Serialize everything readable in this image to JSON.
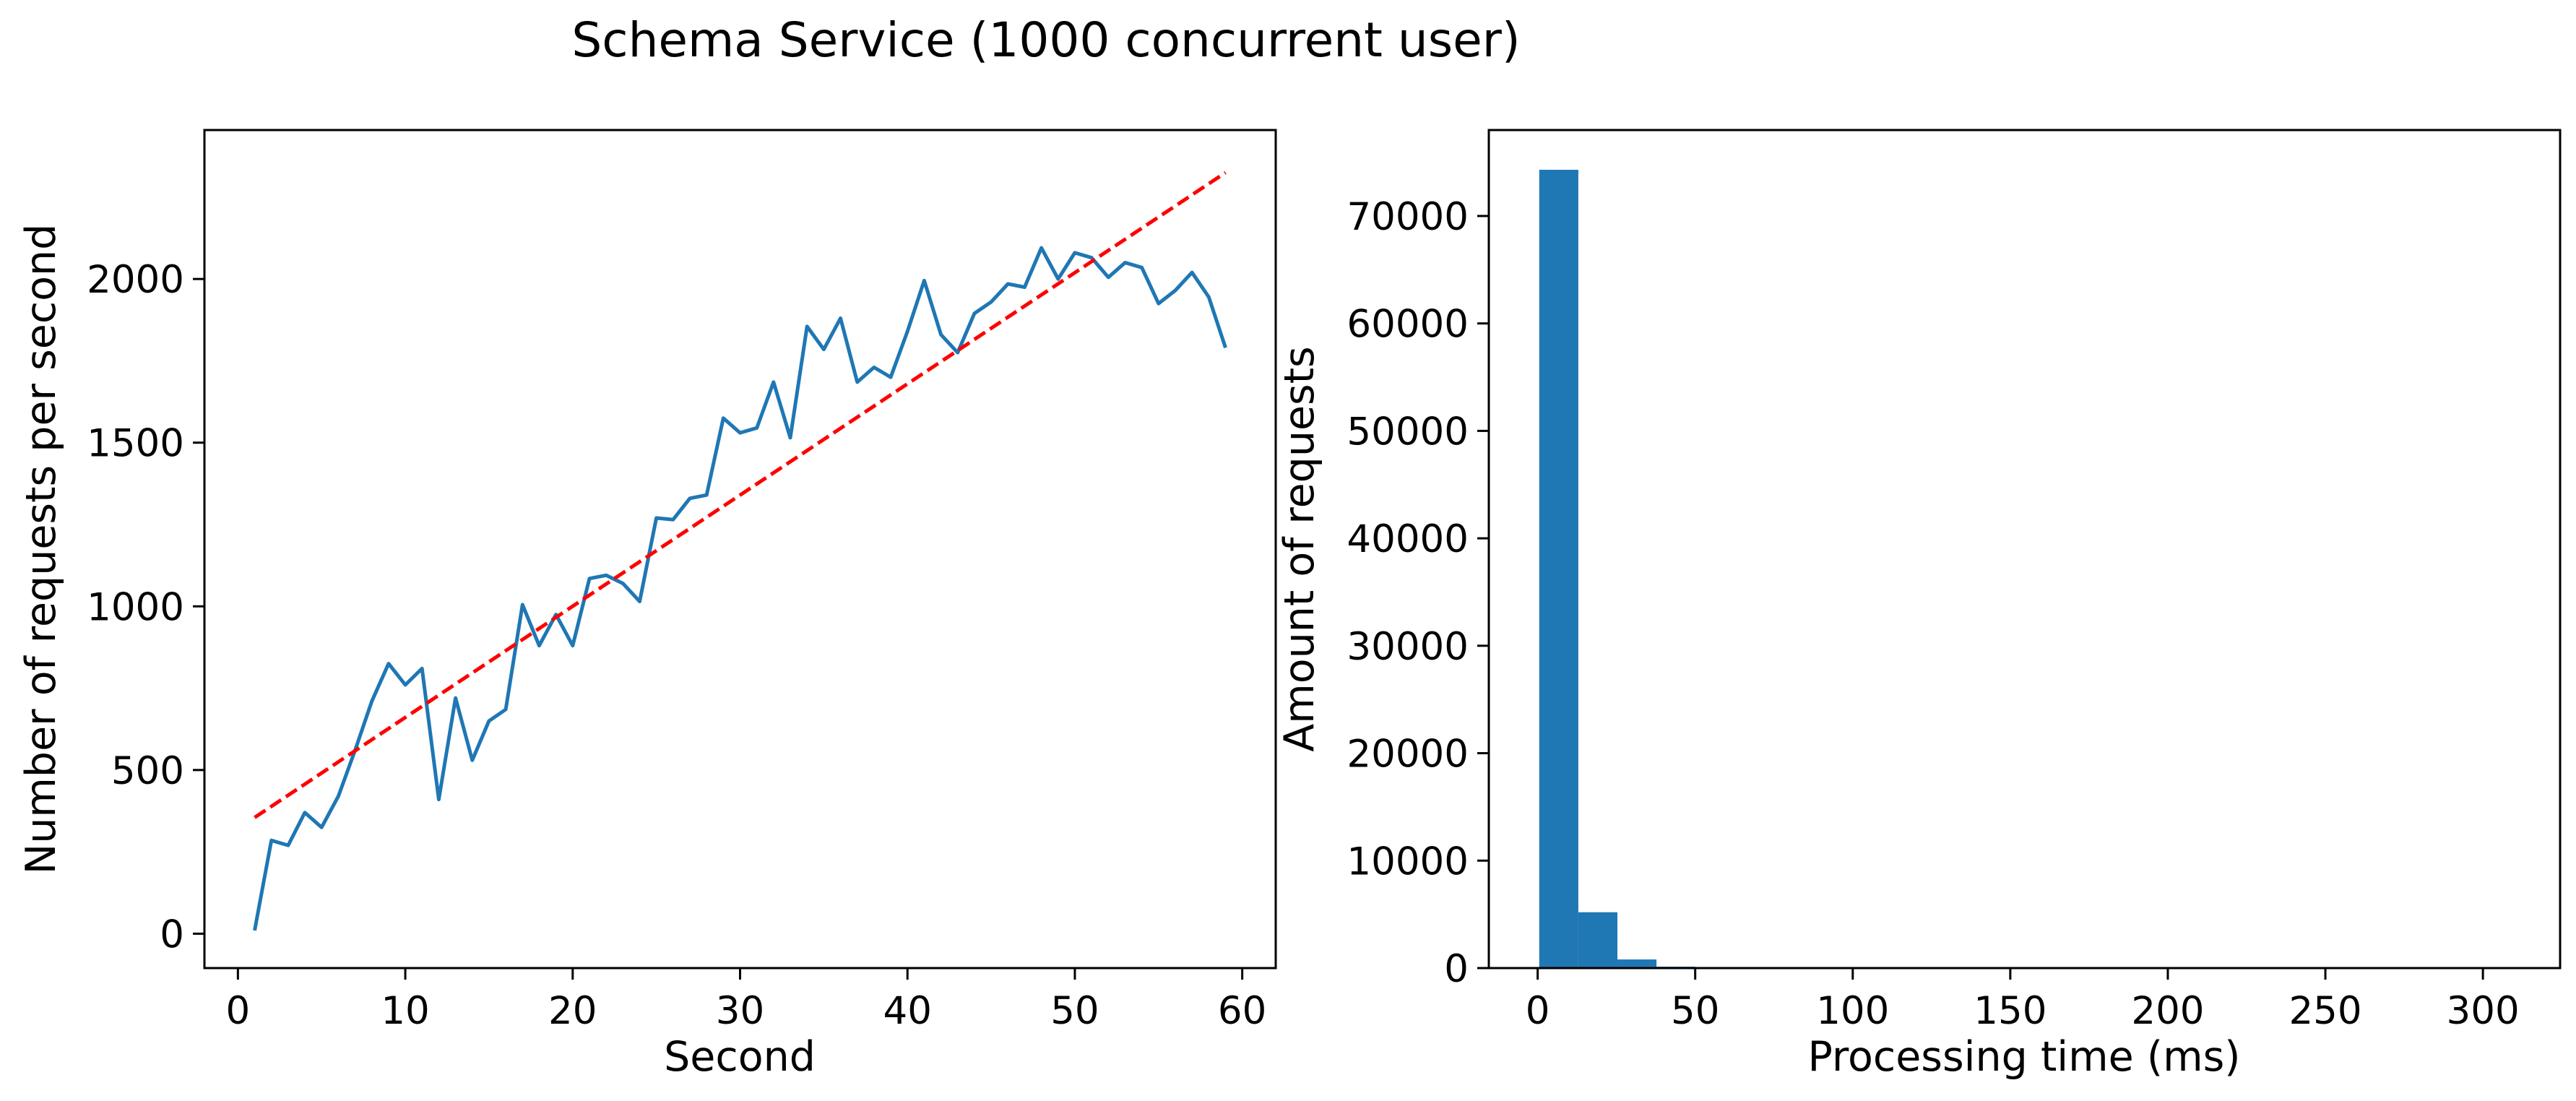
{
  "chart_data": [
    {
      "type": "line",
      "title": "Schema Service (1000 concurrent user)",
      "xlabel": "Second",
      "ylabel": "Number of requests per second",
      "xlim": [
        -2,
        62
      ],
      "ylim": [
        -105,
        2455
      ],
      "xticks": [
        0,
        10,
        20,
        30,
        40,
        50,
        60
      ],
      "yticks": [
        0,
        500,
        1000,
        1500,
        2000
      ],
      "grid": false,
      "series": [
        {
          "color": "#1f77b4",
          "style": "solid",
          "x": [
            1,
            2,
            3,
            4,
            5,
            6,
            7,
            8,
            9,
            10,
            11,
            12,
            13,
            14,
            15,
            16,
            17,
            18,
            19,
            20,
            21,
            22,
            23,
            24,
            25,
            26,
            27,
            28,
            29,
            30,
            31,
            32,
            33,
            34,
            35,
            36,
            37,
            38,
            39,
            40,
            41,
            42,
            43,
            44,
            45,
            46,
            47,
            48,
            49,
            50,
            51,
            52,
            53,
            54,
            55,
            56,
            57,
            58,
            59
          ],
          "y": [
            10,
            285,
            270,
            370,
            325,
            420,
            560,
            710,
            825,
            760,
            810,
            410,
            720,
            530,
            650,
            685,
            1005,
            880,
            975,
            880,
            1085,
            1095,
            1070,
            1015,
            1270,
            1265,
            1330,
            1340,
            1575,
            1530,
            1545,
            1685,
            1515,
            1855,
            1785,
            1880,
            1685,
            1730,
            1700,
            1840,
            1995,
            1830,
            1775,
            1895,
            1930,
            1985,
            1975,
            2095,
            2000,
            2080,
            2065,
            2005,
            2050,
            2035,
            1925,
            1965,
            2020,
            1945,
            1790
          ]
        },
        {
          "color": "#ff0000",
          "style": "dashed",
          "x": [
            1,
            59
          ],
          "y": [
            355,
            2325
          ]
        }
      ]
    },
    {
      "type": "bar",
      "title": "",
      "xlabel": "Processing time (ms)",
      "ylabel": "Amount of requests",
      "xlim": [
        -15.5,
        324.5
      ],
      "ylim": [
        0,
        78000
      ],
      "xticks": [
        0,
        50,
        100,
        150,
        200,
        250,
        300
      ],
      "yticks": [
        0,
        10000,
        20000,
        30000,
        40000,
        50000,
        60000,
        70000
      ],
      "grid": false,
      "color": "#1f77b4",
      "bin_width": 12.4,
      "bin_start": 0.5,
      "values": [
        74300,
        5200,
        800,
        130,
        30,
        12,
        6,
        4,
        3,
        2,
        2,
        1,
        1,
        1,
        1,
        1,
        1,
        1,
        1,
        1,
        1,
        1,
        1,
        1,
        1
      ]
    }
  ]
}
